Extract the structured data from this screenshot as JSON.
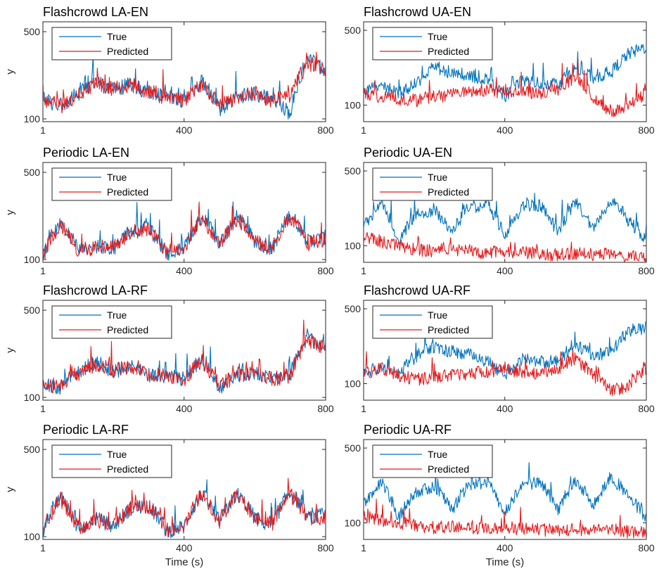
{
  "figure": {
    "series_colors": {
      "True": "#0072BD",
      "Predicted": "#E41A1C"
    }
  },
  "chart_data": [
    {
      "type": "line",
      "title": "Flashcrowd LA-EN",
      "xlabel": "",
      "ylabel": "y",
      "xlim": [
        1,
        800
      ],
      "ylim": [
        95,
        600
      ],
      "yscale": "log",
      "xticks": [
        "1",
        "400",
        "800"
      ],
      "yticks": [
        "100",
        "500"
      ],
      "legend": [
        "True",
        "Predicted"
      ],
      "legend_position": "top-left",
      "x": [
        1,
        50,
        100,
        150,
        200,
        250,
        300,
        350,
        400,
        450,
        500,
        550,
        600,
        650,
        700,
        750,
        800
      ],
      "series": [
        {
          "name": "True",
          "values": [
            150,
            120,
            160,
            200,
            170,
            190,
            160,
            150,
            140,
            200,
            120,
            150,
            160,
            140,
            110,
            300,
            250
          ]
        },
        {
          "name": "Predicted",
          "values": [
            145,
            125,
            155,
            190,
            175,
            185,
            165,
            155,
            140,
            190,
            125,
            150,
            160,
            140,
            150,
            280,
            240
          ]
        }
      ]
    },
    {
      "type": "line",
      "title": "Flashcrowd UA-EN",
      "xlabel": "",
      "ylabel": "",
      "xlim": [
        1,
        800
      ],
      "ylim": [
        70,
        600
      ],
      "yscale": "log",
      "xticks": [
        "1",
        "400",
        "800"
      ],
      "yticks": [
        "100",
        "500"
      ],
      "legend": [
        "True",
        "Predicted"
      ],
      "legend_position": "top-left",
      "x": [
        1,
        50,
        100,
        150,
        200,
        250,
        300,
        350,
        400,
        450,
        500,
        550,
        600,
        650,
        700,
        750,
        800
      ],
      "series": [
        {
          "name": "True",
          "values": [
            140,
            150,
            130,
            160,
            230,
            200,
            190,
            170,
            120,
            170,
            160,
            160,
            220,
            180,
            200,
            300,
            350
          ]
        },
        {
          "name": "Predicted",
          "values": [
            130,
            120,
            115,
            110,
            120,
            125,
            130,
            140,
            130,
            135,
            130,
            140,
            180,
            120,
            85,
            100,
            130
          ]
        }
      ]
    },
    {
      "type": "line",
      "title": "Periodic LA-EN",
      "xlabel": "",
      "ylabel": "y",
      "xlim": [
        1,
        800
      ],
      "ylim": [
        95,
        600
      ],
      "yscale": "log",
      "xticks": [
        "1",
        "400",
        "800"
      ],
      "yticks": [
        "100",
        "500"
      ],
      "legend": [
        "True",
        "Predicted"
      ],
      "legend_position": "top-left",
      "x": [
        1,
        50,
        100,
        150,
        200,
        250,
        300,
        350,
        400,
        450,
        500,
        550,
        600,
        650,
        700,
        750,
        800
      ],
      "series": [
        {
          "name": "True",
          "values": [
            110,
            200,
            120,
            130,
            120,
            170,
            180,
            110,
            120,
            220,
            130,
            220,
            140,
            120,
            230,
            140,
            150
          ]
        },
        {
          "name": "Predicted",
          "values": [
            105,
            190,
            115,
            125,
            125,
            165,
            175,
            115,
            120,
            210,
            130,
            210,
            140,
            125,
            220,
            135,
            145
          ]
        }
      ]
    },
    {
      "type": "line",
      "title": "Periodic UA-EN",
      "xlabel": "",
      "ylabel": "",
      "xlim": [
        1,
        800
      ],
      "ylim": [
        70,
        600
      ],
      "yscale": "log",
      "xticks": [
        "1",
        "400",
        "800"
      ],
      "yticks": [
        "100",
        "500"
      ],
      "legend": [
        "True",
        "Predicted"
      ],
      "legend_position": "top-left",
      "x": [
        1,
        50,
        100,
        150,
        200,
        250,
        300,
        350,
        400,
        450,
        500,
        550,
        600,
        650,
        700,
        750,
        800
      ],
      "series": [
        {
          "name": "True",
          "values": [
            150,
            250,
            110,
            190,
            220,
            130,
            230,
            240,
            120,
            230,
            240,
            130,
            250,
            140,
            270,
            170,
            110
          ]
        },
        {
          "name": "Predicted",
          "values": [
            120,
            110,
            100,
            92,
            90,
            92,
            88,
            86,
            88,
            86,
            84,
            82,
            84,
            82,
            85,
            80,
            78
          ]
        }
      ]
    },
    {
      "type": "line",
      "title": "Flashcrowd LA-RF",
      "xlabel": "",
      "ylabel": "y",
      "xlim": [
        1,
        800
      ],
      "ylim": [
        95,
        600
      ],
      "yscale": "log",
      "xticks": [
        "1",
        "400",
        "800"
      ],
      "yticks": [
        "100",
        "500"
      ],
      "legend": [
        "True",
        "Predicted"
      ],
      "legend_position": "top-left",
      "x": [
        1,
        50,
        100,
        150,
        200,
        250,
        300,
        350,
        400,
        450,
        500,
        550,
        600,
        650,
        700,
        750,
        800
      ],
      "series": [
        {
          "name": "True",
          "values": [
            130,
            120,
            160,
            190,
            160,
            180,
            150,
            150,
            140,
            200,
            120,
            150,
            160,
            140,
            150,
            300,
            250
          ]
        },
        {
          "name": "Predicted",
          "values": [
            125,
            125,
            155,
            185,
            165,
            180,
            150,
            150,
            140,
            195,
            125,
            150,
            160,
            140,
            150,
            290,
            245
          ]
        }
      ]
    },
    {
      "type": "line",
      "title": "Flashcrowd UA-RF",
      "xlabel": "",
      "ylabel": "",
      "xlim": [
        1,
        800
      ],
      "ylim": [
        70,
        600
      ],
      "yscale": "log",
      "xticks": [
        "1",
        "400",
        "800"
      ],
      "yticks": [
        "100",
        "500"
      ],
      "legend": [
        "True",
        "Predicted"
      ],
      "legend_position": "top-left",
      "x": [
        1,
        50,
        100,
        150,
        200,
        250,
        300,
        350,
        400,
        450,
        500,
        550,
        600,
        650,
        700,
        750,
        800
      ],
      "series": [
        {
          "name": "True",
          "values": [
            130,
            140,
            120,
            180,
            220,
            200,
            190,
            160,
            120,
            170,
            160,
            160,
            230,
            180,
            200,
            300,
            340
          ]
        },
        {
          "name": "Predicted",
          "values": [
            120,
            140,
            120,
            110,
            115,
            120,
            125,
            130,
            135,
            130,
            125,
            140,
            170,
            120,
            85,
            95,
            140
          ]
        }
      ]
    },
    {
      "type": "line",
      "title": "Periodic LA-RF",
      "xlabel": "Time (s)",
      "ylabel": "y",
      "xlim": [
        1,
        800
      ],
      "ylim": [
        95,
        600
      ],
      "yscale": "log",
      "xticks": [
        "1",
        "400",
        "800"
      ],
      "yticks": [
        "100",
        "500"
      ],
      "legend": [
        "True",
        "Predicted"
      ],
      "legend_position": "top-left",
      "x": [
        1,
        50,
        100,
        150,
        200,
        250,
        300,
        350,
        400,
        450,
        500,
        550,
        600,
        650,
        700,
        750,
        800
      ],
      "series": [
        {
          "name": "True",
          "values": [
            110,
            210,
            115,
            140,
            120,
            170,
            180,
            110,
            120,
            220,
            130,
            220,
            140,
            120,
            230,
            140,
            150
          ]
        },
        {
          "name": "Predicted",
          "values": [
            108,
            200,
            118,
            135,
            125,
            165,
            175,
            112,
            120,
            215,
            130,
            215,
            140,
            125,
            220,
            138,
            145
          ]
        }
      ]
    },
    {
      "type": "line",
      "title": "Periodic UA-RF",
      "xlabel": "Time (s)",
      "ylabel": "",
      "xlim": [
        1,
        800
      ],
      "ylim": [
        70,
        600
      ],
      "yscale": "log",
      "xticks": [
        "1",
        "400",
        "800"
      ],
      "yticks": [
        "100",
        "500"
      ],
      "legend": [
        "True",
        "Predicted"
      ],
      "legend_position": "top-left",
      "x": [
        1,
        50,
        100,
        150,
        200,
        250,
        300,
        350,
        400,
        450,
        500,
        550,
        600,
        650,
        700,
        750,
        800
      ],
      "series": [
        {
          "name": "True",
          "values": [
            150,
            240,
            110,
            190,
            220,
            130,
            230,
            240,
            120,
            230,
            240,
            130,
            250,
            140,
            270,
            170,
            110
          ]
        },
        {
          "name": "Predicted",
          "values": [
            115,
            105,
            100,
            95,
            90,
            92,
            90,
            88,
            90,
            88,
            86,
            85,
            86,
            84,
            90,
            82,
            80
          ]
        }
      ]
    }
  ]
}
